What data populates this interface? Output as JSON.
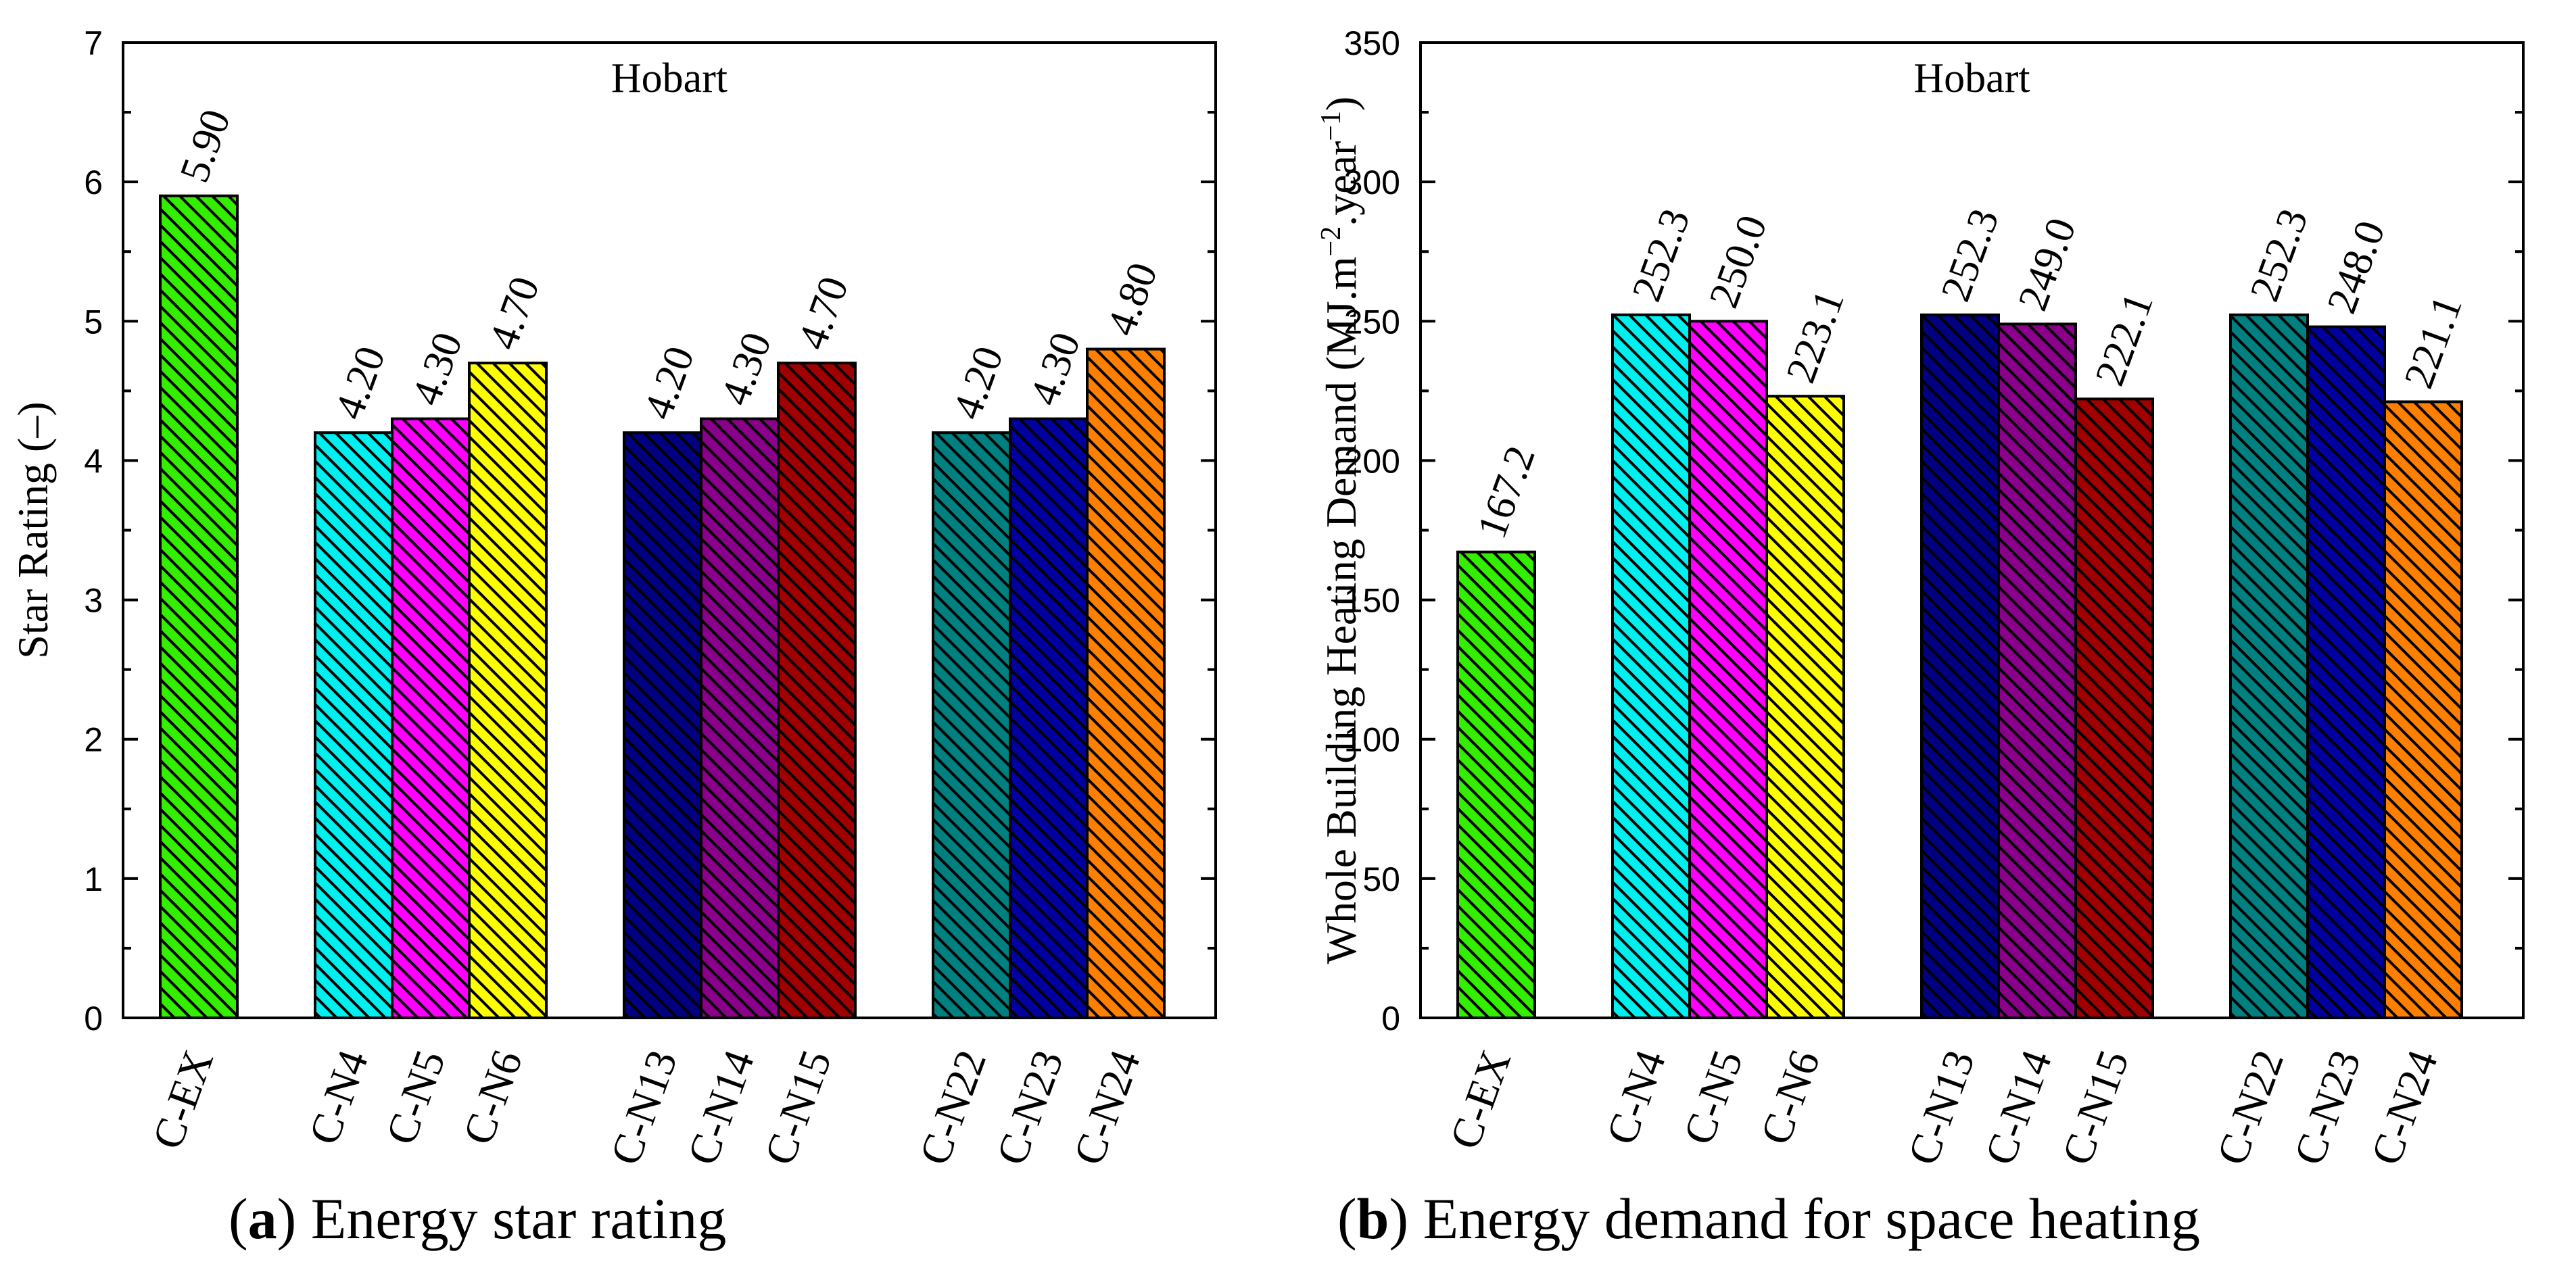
{
  "chart_data": [
    {
      "type": "bar",
      "title": "Hobart",
      "caption_letter": "a",
      "caption_text": "Energy star rating",
      "xlabel": "",
      "ylabel": "Star Rating  (–)",
      "ylim": [
        0,
        7
      ],
      "yticks": [
        0,
        1,
        2,
        3,
        4,
        5,
        6,
        7
      ],
      "grid": false,
      "groups": [
        {
          "bars": [
            {
              "label": "C-EX",
              "value": 5.9,
              "text": "5.90",
              "color": "#33ee00"
            }
          ]
        },
        {
          "bars": [
            {
              "label": "C-N4",
              "value": 4.2,
              "text": "4.20",
              "color": "#00f0f0"
            },
            {
              "label": "C-N5",
              "value": 4.3,
              "text": "4.30",
              "color": "#ff00ff"
            },
            {
              "label": "C-N6",
              "value": 4.7,
              "text": "4.70",
              "color": "#ffff00"
            }
          ]
        },
        {
          "bars": [
            {
              "label": "C-N13",
              "value": 4.2,
              "text": "4.20",
              "color": "#000080"
            },
            {
              "label": "C-N14",
              "value": 4.3,
              "text": "4.30",
              "color": "#8b008b"
            },
            {
              "label": "C-N15",
              "value": 4.7,
              "text": "4.70",
              "color": "#a00000"
            }
          ]
        },
        {
          "bars": [
            {
              "label": "C-N22",
              "value": 4.2,
              "text": "4.20",
              "color": "#008080"
            },
            {
              "label": "C-N23",
              "value": 4.3,
              "text": "4.30",
              "color": "#0000a0"
            },
            {
              "label": "C-N24",
              "value": 4.8,
              "text": "4.80",
              "color": "#ff8000"
            }
          ]
        }
      ]
    },
    {
      "type": "bar",
      "title": "Hobart",
      "caption_letter": "b",
      "caption_text": "Energy demand for space heating",
      "xlabel": "",
      "ylabel": "Whole Building Heating Demand  (MJ.m",
      "ylabel_sup1": "−2",
      "ylabel_mid": ".year",
      "ylabel_sup2": "−1",
      "ylabel_end": ")",
      "ylim": [
        0,
        350
      ],
      "yticks": [
        0,
        50,
        100,
        150,
        200,
        250,
        300,
        350
      ],
      "grid": false,
      "groups": [
        {
          "bars": [
            {
              "label": "C-EX",
              "value": 167.2,
              "text": "167.2",
              "color": "#33ee00"
            }
          ]
        },
        {
          "bars": [
            {
              "label": "C-N4",
              "value": 252.3,
              "text": "252.3",
              "color": "#00f0f0"
            },
            {
              "label": "C-N5",
              "value": 250.0,
              "text": "250.0",
              "color": "#ff00ff"
            },
            {
              "label": "C-N6",
              "value": 223.1,
              "text": "223.1",
              "color": "#ffff00"
            }
          ]
        },
        {
          "bars": [
            {
              "label": "C-N13",
              "value": 252.3,
              "text": "252.3",
              "color": "#000080"
            },
            {
              "label": "C-N14",
              "value": 249.0,
              "text": "249.0",
              "color": "#8b008b"
            },
            {
              "label": "C-N15",
              "value": 222.1,
              "text": "222.1",
              "color": "#a00000"
            }
          ]
        },
        {
          "bars": [
            {
              "label": "C-N22",
              "value": 252.3,
              "text": "252.3",
              "color": "#008080"
            },
            {
              "label": "C-N23",
              "value": 248.0,
              "text": "248.0",
              "color": "#0000a0"
            },
            {
              "label": "C-N24",
              "value": 221.1,
              "text": "221.1",
              "color": "#ff8000"
            }
          ]
        }
      ]
    }
  ]
}
